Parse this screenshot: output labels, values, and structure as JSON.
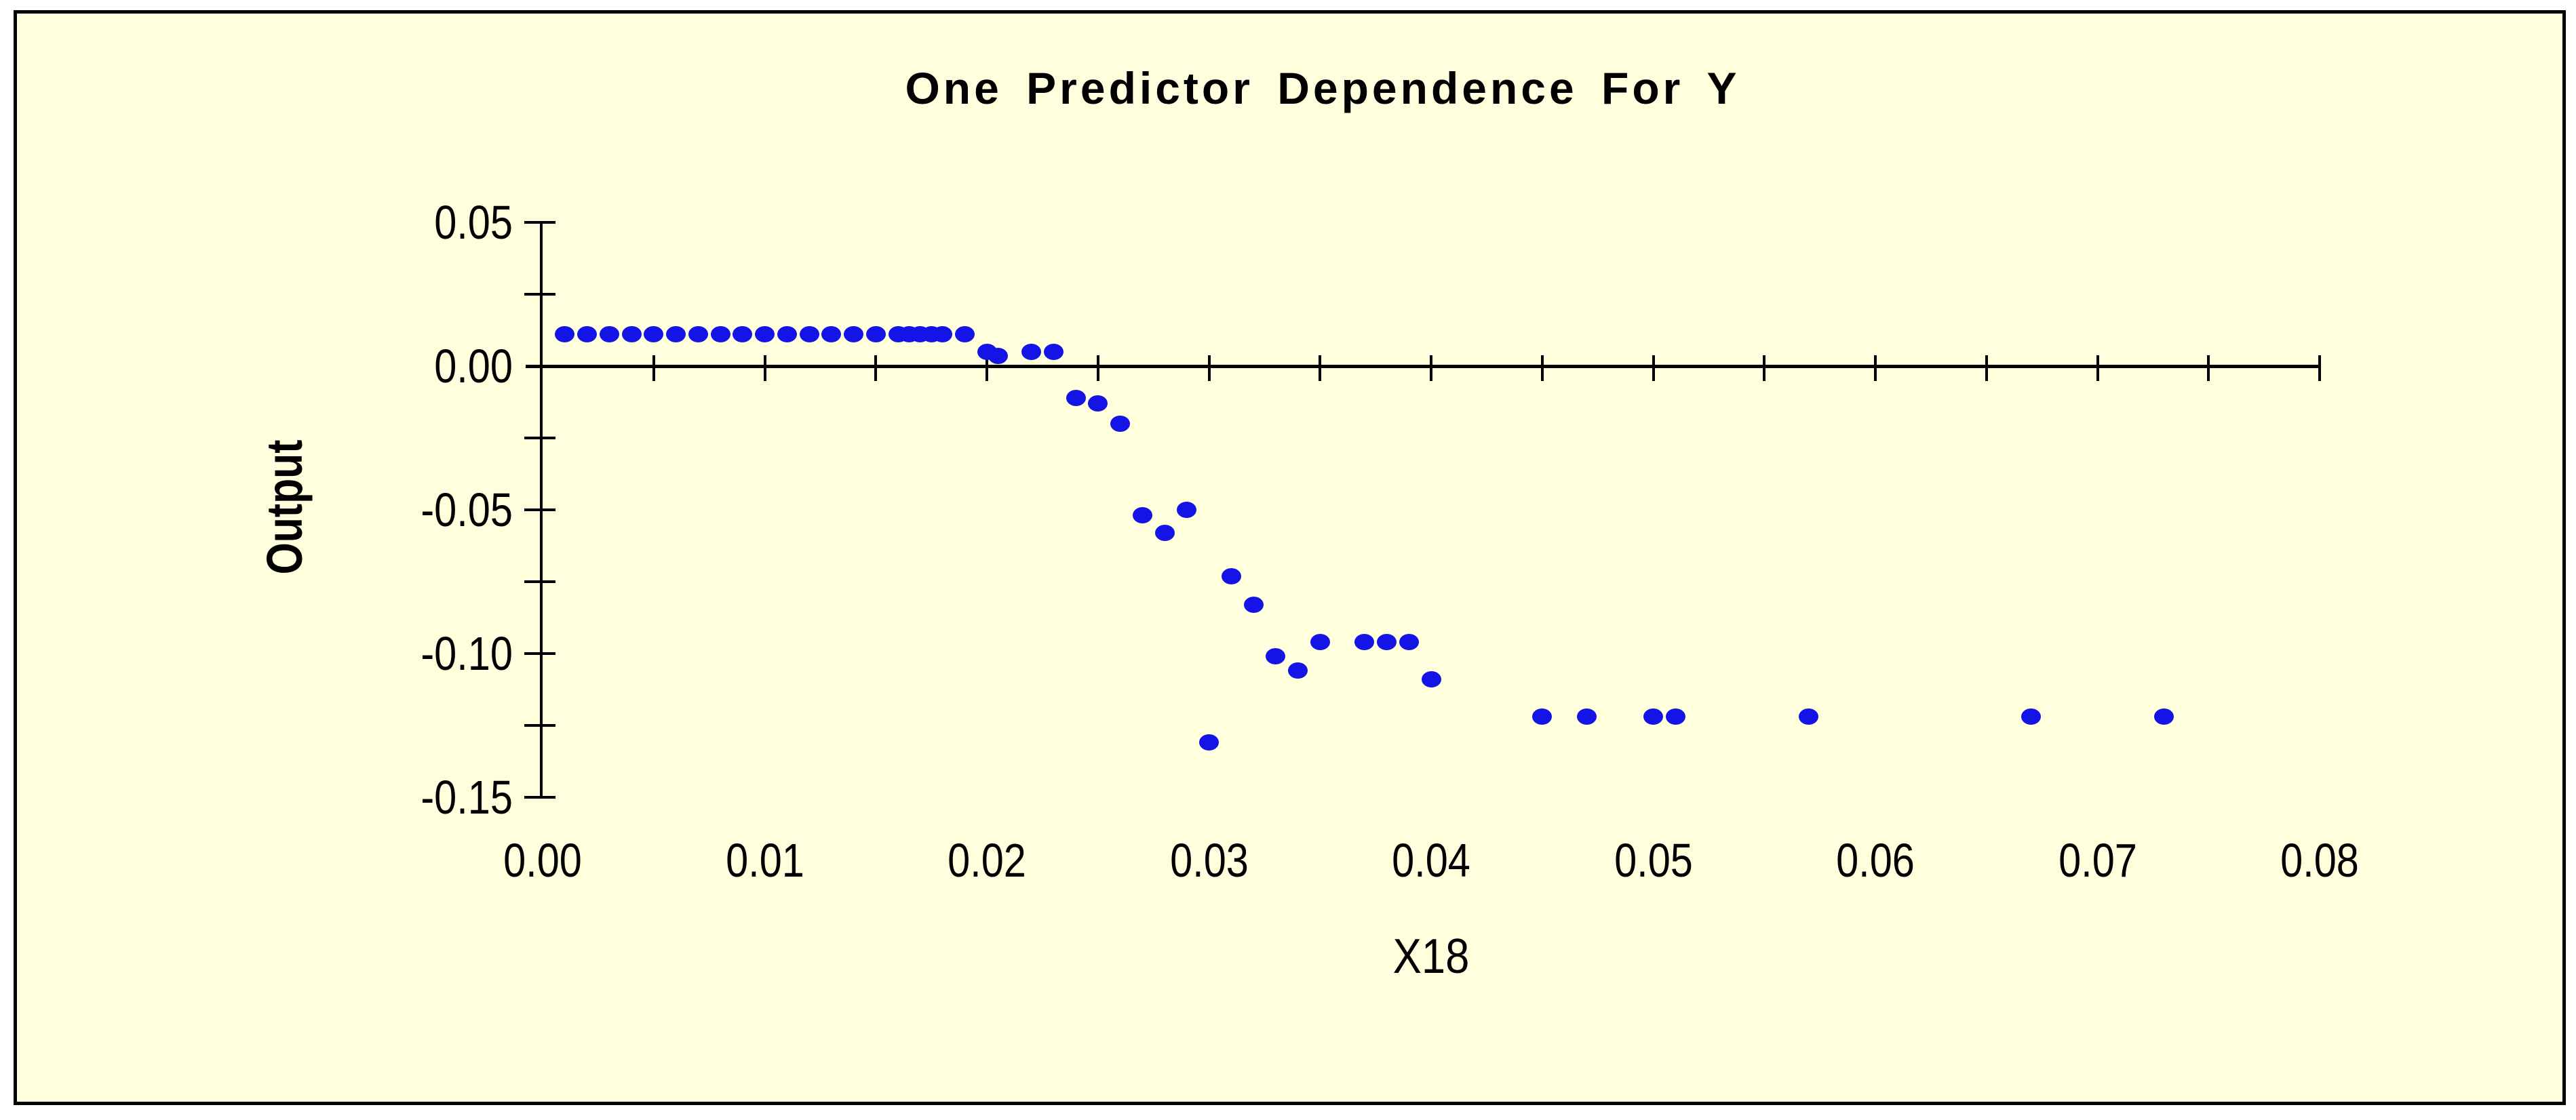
{
  "window": {
    "background_color": "#ffffff"
  },
  "panel": {
    "background_color": "#ffffde",
    "border_color": "#000000"
  },
  "chart_data": {
    "type": "scatter",
    "title": "One Predictor Dependence For Y",
    "xlabel": "X18",
    "ylabel": "Output",
    "xlim": [
      0,
      0.08
    ],
    "ylim": [
      -0.15,
      0.05
    ],
    "x_major_ticks": [
      0,
      0.01,
      0.02,
      0.03,
      0.04,
      0.05,
      0.06,
      0.07,
      0.08
    ],
    "x_tick_labels": [
      "0.00",
      "0.01",
      "0.02",
      "0.03",
      "0.04",
      "0.05",
      "0.06",
      "0.07",
      "0.08"
    ],
    "x_minor_tick_step": 0.005,
    "y_major_ticks": [
      0.05,
      0.0,
      -0.05,
      -0.1,
      -0.15
    ],
    "y_tick_labels": [
      "0.05",
      "0.00",
      "-0.05",
      "-0.10",
      "-0.15"
    ],
    "y_minor_tick_step": 0.025,
    "grid": false,
    "legend": null,
    "marker_color": "#1414e6",
    "axis_color": "#000000",
    "points": [
      [
        0.001,
        0.011
      ],
      [
        0.002,
        0.011
      ],
      [
        0.003,
        0.011
      ],
      [
        0.004,
        0.011
      ],
      [
        0.005,
        0.011
      ],
      [
        0.006,
        0.011
      ],
      [
        0.007,
        0.011
      ],
      [
        0.008,
        0.011
      ],
      [
        0.009,
        0.011
      ],
      [
        0.01,
        0.011
      ],
      [
        0.011,
        0.011
      ],
      [
        0.012,
        0.011
      ],
      [
        0.013,
        0.011
      ],
      [
        0.014,
        0.011
      ],
      [
        0.015,
        0.011
      ],
      [
        0.016,
        0.011
      ],
      [
        0.0165,
        0.011
      ],
      [
        0.017,
        0.011
      ],
      [
        0.0175,
        0.011
      ],
      [
        0.018,
        0.011
      ],
      [
        0.019,
        0.011
      ],
      [
        0.02,
        0.005
      ],
      [
        0.0205,
        0.0035
      ],
      [
        0.022,
        0.005
      ],
      [
        0.023,
        0.005
      ],
      [
        0.024,
        -0.011
      ],
      [
        0.025,
        -0.013
      ],
      [
        0.026,
        -0.02
      ],
      [
        0.027,
        -0.052
      ],
      [
        0.028,
        -0.058
      ],
      [
        0.029,
        -0.05
      ],
      [
        0.03,
        -0.131
      ],
      [
        0.031,
        -0.073
      ],
      [
        0.032,
        -0.083
      ],
      [
        0.033,
        -0.101
      ],
      [
        0.034,
        -0.106
      ],
      [
        0.035,
        -0.096
      ],
      [
        0.037,
        -0.096
      ],
      [
        0.038,
        -0.096
      ],
      [
        0.039,
        -0.096
      ],
      [
        0.04,
        -0.109
      ],
      [
        0.045,
        -0.122
      ],
      [
        0.047,
        -0.122
      ],
      [
        0.05,
        -0.122
      ],
      [
        0.051,
        -0.122
      ],
      [
        0.057,
        -0.122
      ],
      [
        0.067,
        -0.122
      ],
      [
        0.073,
        -0.122
      ]
    ]
  }
}
